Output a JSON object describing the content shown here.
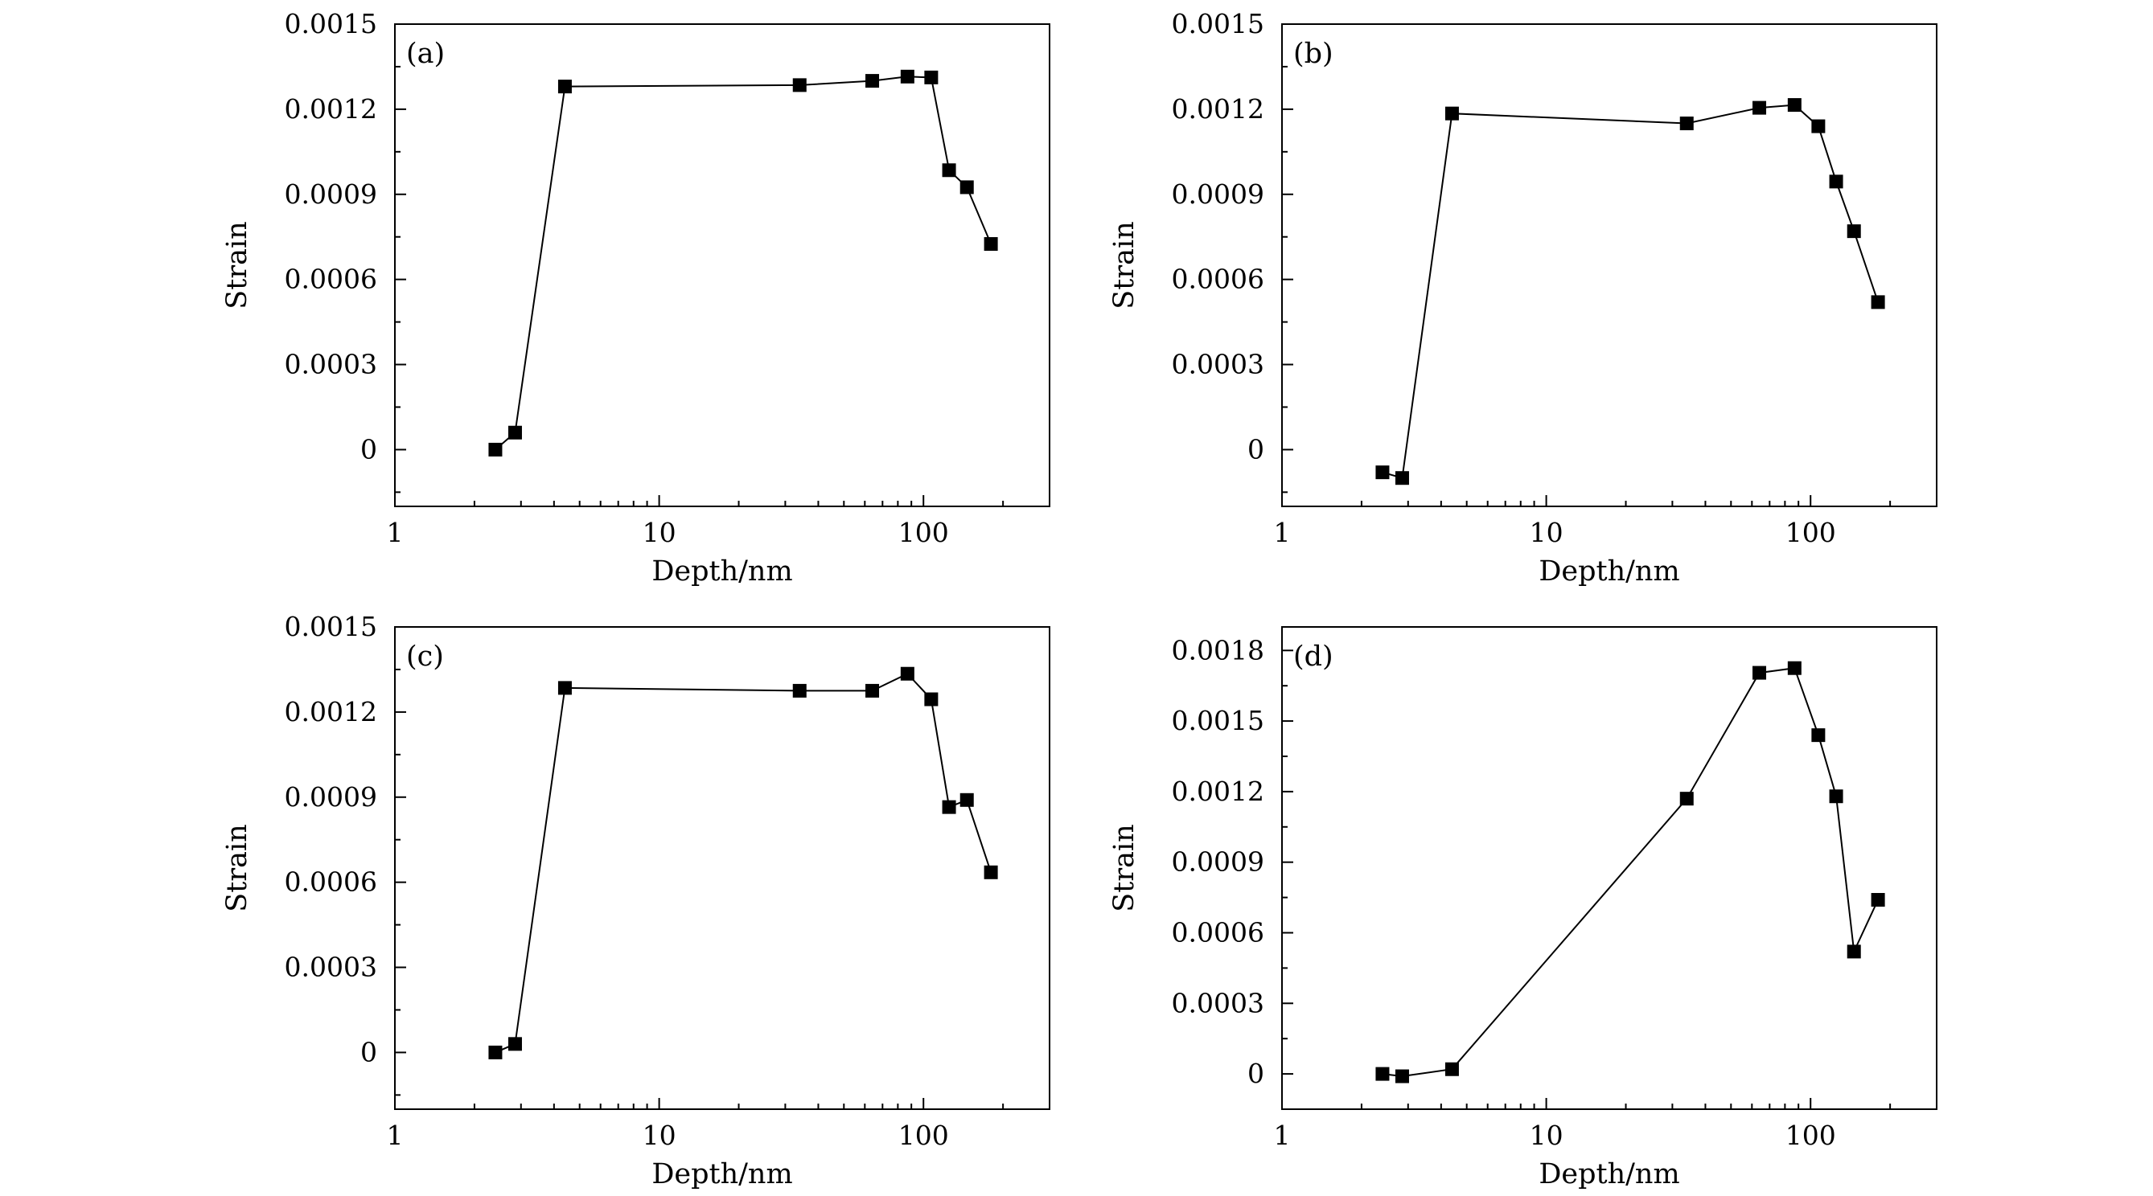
{
  "chart_data": [
    {
      "type": "line",
      "panel_label": "(a)",
      "xlabel": "Depth/nm",
      "ylabel": "Strain",
      "xscale": "log",
      "xlim": [
        1,
        300
      ],
      "ylim": [
        -0.0002,
        0.0015
      ],
      "x_ticks": [
        1,
        10,
        100
      ],
      "x_tick_labels": [
        "1",
        "10",
        "100"
      ],
      "y_ticks": [
        0,
        0.0003,
        0.0006,
        0.0009,
        0.0012,
        0.0015
      ],
      "y_tick_labels": [
        "0",
        "0.0003",
        "0.0006",
        "0.0009",
        "0.0012",
        "0.0015"
      ],
      "x": [
        2.4,
        2.85,
        4.4,
        34,
        64,
        87,
        107,
        125,
        146,
        180
      ],
      "y": [
        0.0,
        6e-05,
        0.00128,
        0.001285,
        0.0013,
        0.001315,
        0.001312,
        0.000985,
        0.000925,
        0.000725
      ]
    },
    {
      "type": "line",
      "panel_label": "(b)",
      "xlabel": "Depth/nm",
      "ylabel": "Strain",
      "xscale": "log",
      "xlim": [
        1,
        300
      ],
      "ylim": [
        -0.0002,
        0.0015
      ],
      "x_ticks": [
        1,
        10,
        100
      ],
      "x_tick_labels": [
        "1",
        "10",
        "100"
      ],
      "y_ticks": [
        0,
        0.0003,
        0.0006,
        0.0009,
        0.0012,
        0.0015
      ],
      "y_tick_labels": [
        "0",
        "0.0003",
        "0.0006",
        "0.0009",
        "0.0012",
        "0.0015"
      ],
      "x": [
        2.4,
        2.85,
        4.4,
        34,
        64,
        87,
        107,
        125,
        146,
        180
      ],
      "y": [
        -8e-05,
        -0.0001,
        0.001185,
        0.00115,
        0.001205,
        0.001215,
        0.00114,
        0.000945,
        0.00077,
        0.00052
      ]
    },
    {
      "type": "line",
      "panel_label": "(c)",
      "xlabel": "Depth/nm",
      "ylabel": "Strain",
      "xscale": "log",
      "xlim": [
        1,
        300
      ],
      "ylim": [
        -0.0002,
        0.0015
      ],
      "x_ticks": [
        1,
        10,
        100
      ],
      "x_tick_labels": [
        "1",
        "10",
        "100"
      ],
      "y_ticks": [
        0,
        0.0003,
        0.0006,
        0.0009,
        0.0012,
        0.0015
      ],
      "y_tick_labels": [
        "0",
        "0.0003",
        "0.0006",
        "0.0009",
        "0.0012",
        "0.0015"
      ],
      "x": [
        2.4,
        2.85,
        4.4,
        34,
        64,
        87,
        107,
        125,
        146,
        180
      ],
      "y": [
        0.0,
        3e-05,
        0.001285,
        0.001275,
        0.001275,
        0.001335,
        0.001245,
        0.000865,
        0.00089,
        0.000635
      ]
    },
    {
      "type": "line",
      "panel_label": "(d)",
      "xlabel": "Depth/nm",
      "ylabel": "Strain",
      "xscale": "log",
      "xlim": [
        1,
        300
      ],
      "ylim": [
        -0.00015,
        0.0019
      ],
      "x_ticks": [
        1,
        10,
        100
      ],
      "x_tick_labels": [
        "1",
        "10",
        "100"
      ],
      "y_ticks": [
        0,
        0.0003,
        0.0006,
        0.0009,
        0.0012,
        0.0015,
        0.0018
      ],
      "y_tick_labels": [
        "0",
        "0.0003",
        "0.0006",
        "0.0009",
        "0.0012",
        "0.0015",
        "0.0018"
      ],
      "x": [
        2.4,
        2.85,
        4.4,
        34,
        64,
        87,
        107,
        125,
        146,
        180
      ],
      "y": [
        0.0,
        -1e-05,
        2e-05,
        0.00117,
        0.001705,
        0.001725,
        0.00144,
        0.00118,
        0.00052,
        0.00074
      ]
    }
  ]
}
